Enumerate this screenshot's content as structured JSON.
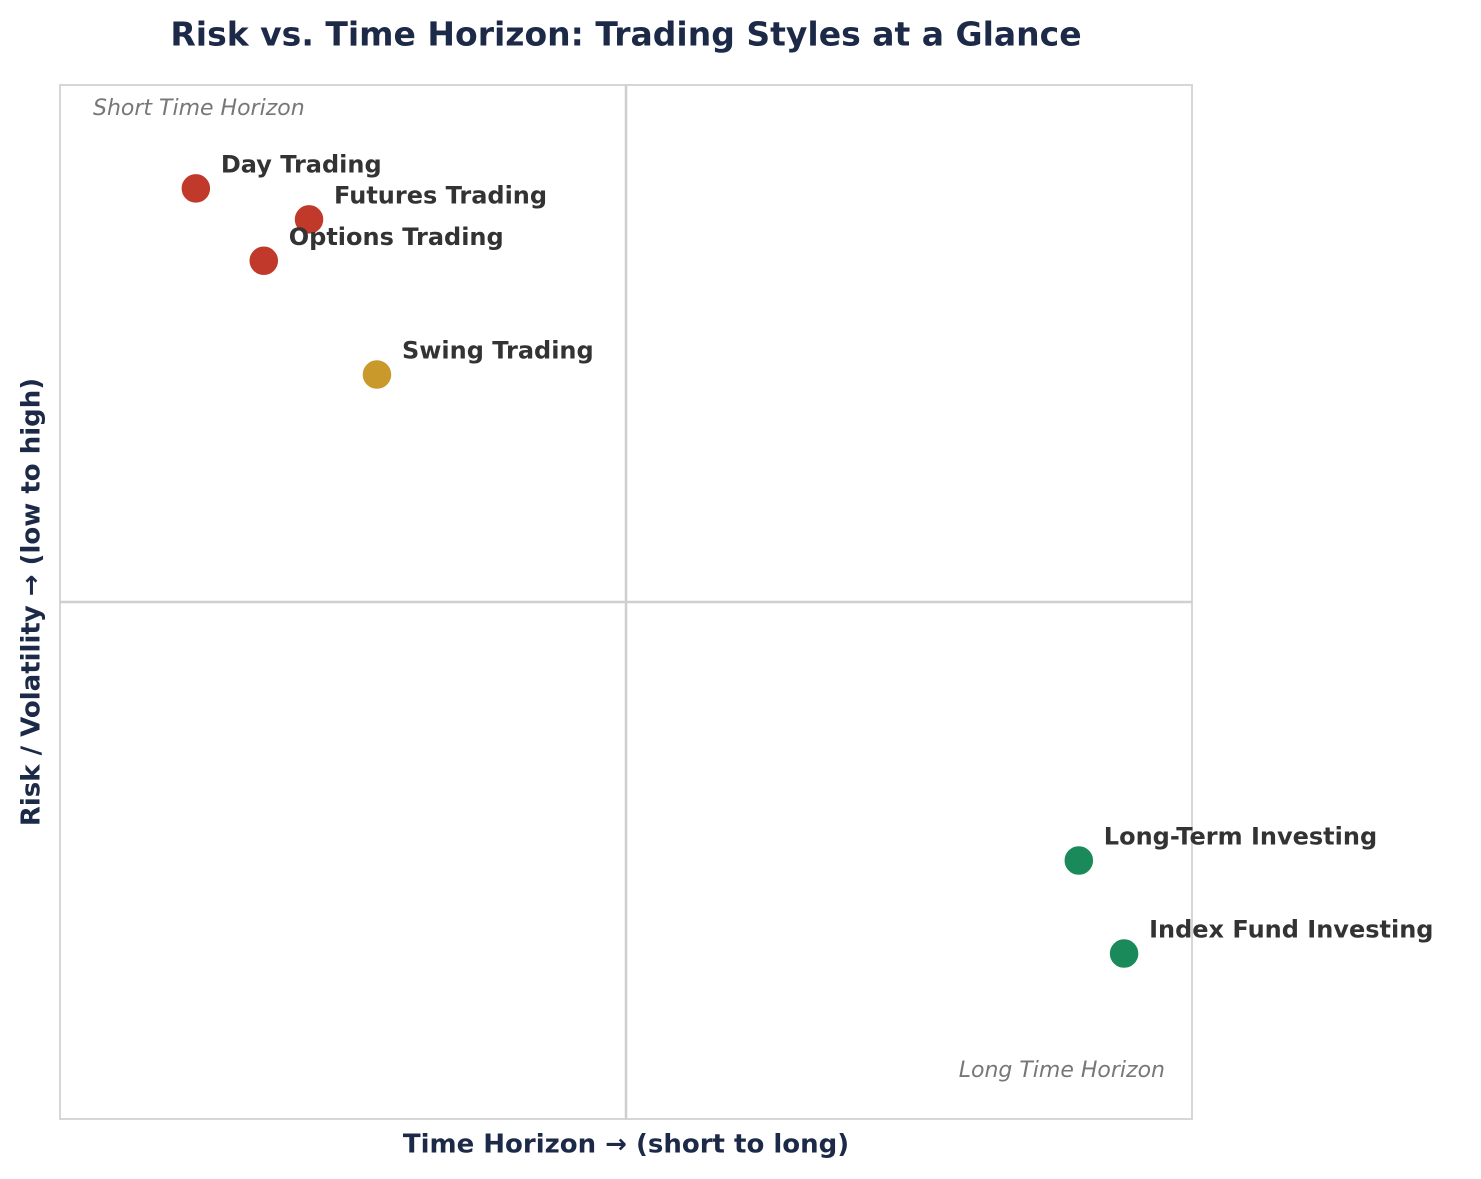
{
  "chart_data": {
    "type": "scatter",
    "title": "Risk vs. Time Horizon: Trading Styles at a Glance",
    "x_label": "Time Horizon  →  (short to long)",
    "y_label": "Risk / Volatility  →  (low to high)",
    "xlim": [
      0,
      10
    ],
    "ylim": [
      0,
      10
    ],
    "points": [
      {
        "label": "Day Trading",
        "x": 1.2,
        "y": 9.0,
        "color": "#c0392b"
      },
      {
        "label": "Futures Trading",
        "x": 2.2,
        "y": 8.7,
        "color": "#c0392b"
      },
      {
        "label": "Options Trading",
        "x": 1.8,
        "y": 8.3,
        "color": "#c0392b"
      },
      {
        "label": "Swing Trading",
        "x": 2.8,
        "y": 7.2,
        "color": "#c9992b"
      },
      {
        "label": "Long-Term Investing",
        "x": 9.0,
        "y": 2.5,
        "color": "#1a8a5a"
      },
      {
        "label": "Index Fund Investing",
        "x": 9.4,
        "y": 1.6,
        "color": "#1a8a5a"
      }
    ],
    "annotations": [
      {
        "text": "Short Time Horizon",
        "corner": "top-left"
      },
      {
        "text": "Long Time Horizon",
        "corner": "bottom-right"
      }
    ]
  }
}
